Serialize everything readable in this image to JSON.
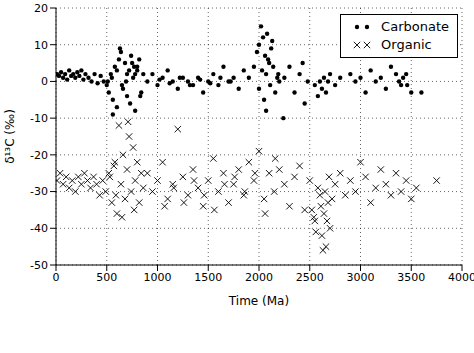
{
  "chart_data": {
    "type": "scatter",
    "xlabel": "Time (Ma)",
    "ylabel": "δ¹³C (‰)",
    "xlim": [
      0,
      4000
    ],
    "xticks": [
      0,
      500,
      1000,
      1500,
      2000,
      2500,
      3000,
      3500,
      4000
    ],
    "ylim": [
      -50,
      20
    ],
    "yticks": [
      -50,
      -40,
      -30,
      -20,
      -10,
      0,
      10,
      20
    ],
    "grid": true,
    "legend": "upper right",
    "series": [
      {
        "name": "Carbonate",
        "color": "#000000",
        "marker": "o",
        "x": [
          10,
          30,
          50,
          70,
          90,
          110,
          130,
          150,
          170,
          190,
          210,
          230,
          250,
          270,
          290,
          320,
          350,
          380,
          410,
          440,
          470,
          500,
          520,
          540,
          560,
          580,
          600,
          620,
          640,
          660,
          680,
          700,
          720,
          740,
          760,
          780,
          800,
          820,
          840,
          860,
          550,
          600,
          650,
          700,
          750,
          800,
          630,
          730,
          780,
          690,
          900,
          950,
          1000,
          1050,
          1100,
          1150,
          1200,
          1250,
          1300,
          1350,
          1400,
          1450,
          1500,
          1550,
          1600,
          1650,
          1700,
          1750,
          1800,
          1850,
          1900,
          1950,
          1980,
          2000,
          2020,
          2040,
          2060,
          2080,
          2100,
          2120,
          2000,
          2030,
          2050,
          2070,
          2090,
          2110,
          2140,
          2160,
          2180,
          2200,
          2250,
          2300,
          2350,
          2400,
          2430,
          2450,
          2480,
          2550,
          2580,
          2600,
          2620,
          2640,
          2660,
          2680,
          2700,
          2750,
          2800,
          2900,
          2950,
          3000,
          3050,
          3100,
          3150,
          3200,
          3250,
          3300,
          3350,
          3400,
          3450,
          3500,
          1020,
          1120,
          1220,
          1320,
          1420,
          1520,
          1620,
          1720,
          2190,
          2240,
          3380,
          3420,
          3460,
          3600,
          830,
          770,
          560,
          510,
          2070,
          2130
        ],
        "values": [
          2,
          1.5,
          2.5,
          1,
          2,
          0.5,
          3,
          1.5,
          2,
          1,
          2.5,
          1.5,
          3,
          0.5,
          2,
          1,
          0,
          2,
          -0.5,
          1.5,
          0,
          -1,
          -3,
          2,
          -5,
          4,
          -7,
          6,
          8,
          -2,
          5,
          -4,
          3,
          7,
          1,
          -8,
          4,
          6,
          -3,
          2,
          1,
          3,
          -1,
          2,
          5,
          3,
          9,
          -6,
          2,
          0,
          0,
          2,
          -1,
          1,
          3,
          0,
          -2,
          1,
          0,
          -1,
          1,
          -3,
          0,
          2,
          -1,
          4,
          0,
          1,
          -2,
          3,
          1,
          4,
          8,
          10,
          15,
          12,
          7,
          13,
          5,
          9,
          -2,
          3,
          -5,
          2,
          6,
          -1,
          4,
          -3,
          1,
          0,
          1,
          4,
          -3,
          2,
          5,
          -6,
          0,
          -1,
          -4,
          0,
          -2,
          1,
          -3,
          0,
          2,
          -1,
          1,
          2,
          0,
          1,
          -3,
          3,
          0,
          1,
          -2,
          4,
          2,
          -1,
          2,
          -3,
          0.5,
          -0.5,
          1,
          -1,
          0.5,
          -0.5,
          1,
          0,
          2,
          -10,
          0,
          1,
          -1,
          -3,
          -4,
          4,
          -9,
          0,
          -8,
          11
        ]
      },
      {
        "name": "Organic",
        "color": "#000000",
        "marker": "x",
        "x": [
          10,
          40,
          70,
          100,
          130,
          160,
          190,
          220,
          250,
          280,
          310,
          340,
          370,
          400,
          430,
          460,
          490,
          520,
          550,
          580,
          600,
          620,
          640,
          660,
          680,
          700,
          720,
          740,
          760,
          780,
          800,
          820,
          840,
          860,
          650,
          710,
          770,
          570,
          590,
          530,
          900,
          950,
          1000,
          1050,
          1100,
          1150,
          1200,
          1250,
          1300,
          1350,
          1400,
          1450,
          1500,
          1550,
          1600,
          1650,
          1700,
          1750,
          1800,
          1850,
          1900,
          1950,
          2000,
          2050,
          2100,
          2150,
          2200,
          2250,
          2300,
          2350,
          2400,
          2450,
          2500,
          2550,
          2600,
          2620,
          2640,
          2660,
          2680,
          2700,
          2580,
          2610,
          2630,
          2650,
          2670,
          2690,
          2720,
          2560,
          2540,
          2520,
          2750,
          2800,
          2850,
          2900,
          2950,
          3000,
          3050,
          3100,
          3150,
          3200,
          3250,
          3300,
          3350,
          3400,
          3450,
          3500,
          3550,
          3750,
          1070,
          1160,
          1260,
          1360,
          1460,
          1560,
          1660,
          1760,
          1860,
          1960,
          2060,
          2160
        ],
        "values": [
          -27,
          -25,
          -28,
          -26,
          -29,
          -27,
          -30,
          -26,
          -28,
          -25,
          -27,
          -29,
          -26,
          -28,
          -31,
          -27,
          -30,
          -25,
          -33,
          -22,
          -36,
          -12,
          -28,
          -20,
          -32,
          -24,
          -15,
          -30,
          -18,
          -27,
          -22,
          -33,
          -25,
          -29,
          -37,
          -11,
          -35,
          -23,
          -31,
          -26,
          -25,
          -30,
          -27,
          -22,
          -32,
          -28,
          -13,
          -26,
          -31,
          -24,
          -29,
          -34,
          -27,
          -21,
          -30,
          -25,
          -33,
          -28,
          -24,
          -31,
          -22,
          -27,
          -19,
          -32,
          -25,
          -30,
          -24,
          -28,
          -34,
          -26,
          -23,
          -35,
          -27,
          -38,
          -31,
          -42,
          -36,
          -45,
          -33,
          -40,
          -29,
          -34,
          -46,
          -30,
          -38,
          -26,
          -32,
          -41,
          -37,
          -35,
          -28,
          -25,
          -31,
          -27,
          -30,
          -22,
          -26,
          -33,
          -29,
          -24,
          -28,
          -31,
          -25,
          -30,
          -27,
          -32,
          -29,
          -27,
          -34,
          -29,
          -33,
          -27,
          -31,
          -35,
          -28,
          -26,
          -30,
          -25,
          -36,
          -21
        ]
      }
    ]
  }
}
